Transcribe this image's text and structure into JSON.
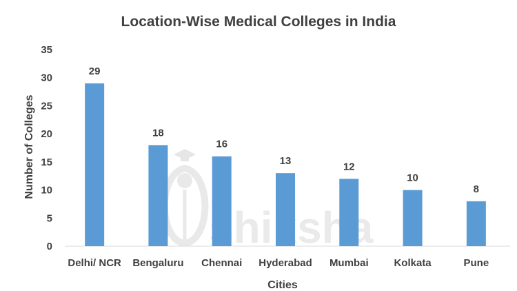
{
  "chart_data": {
    "type": "bar",
    "title": "Location-Wise Medical Colleges in India",
    "xlabel": "Cities",
    "ylabel": "Number of Colleges",
    "categories": [
      "Delhi/ NCR",
      "Bengaluru",
      "Chennai",
      "Hyderabad",
      "Mumbai",
      "Kolkata",
      "Pune"
    ],
    "values": [
      29,
      18,
      16,
      13,
      12,
      10,
      8
    ],
    "ylim": [
      0,
      35
    ],
    "yticks": [
      0,
      5,
      10,
      15,
      20,
      25,
      30,
      35
    ],
    "grid": false,
    "legend": "none",
    "bar_color": "#5b9bd5"
  },
  "watermark": {
    "text": "shiksha"
  }
}
